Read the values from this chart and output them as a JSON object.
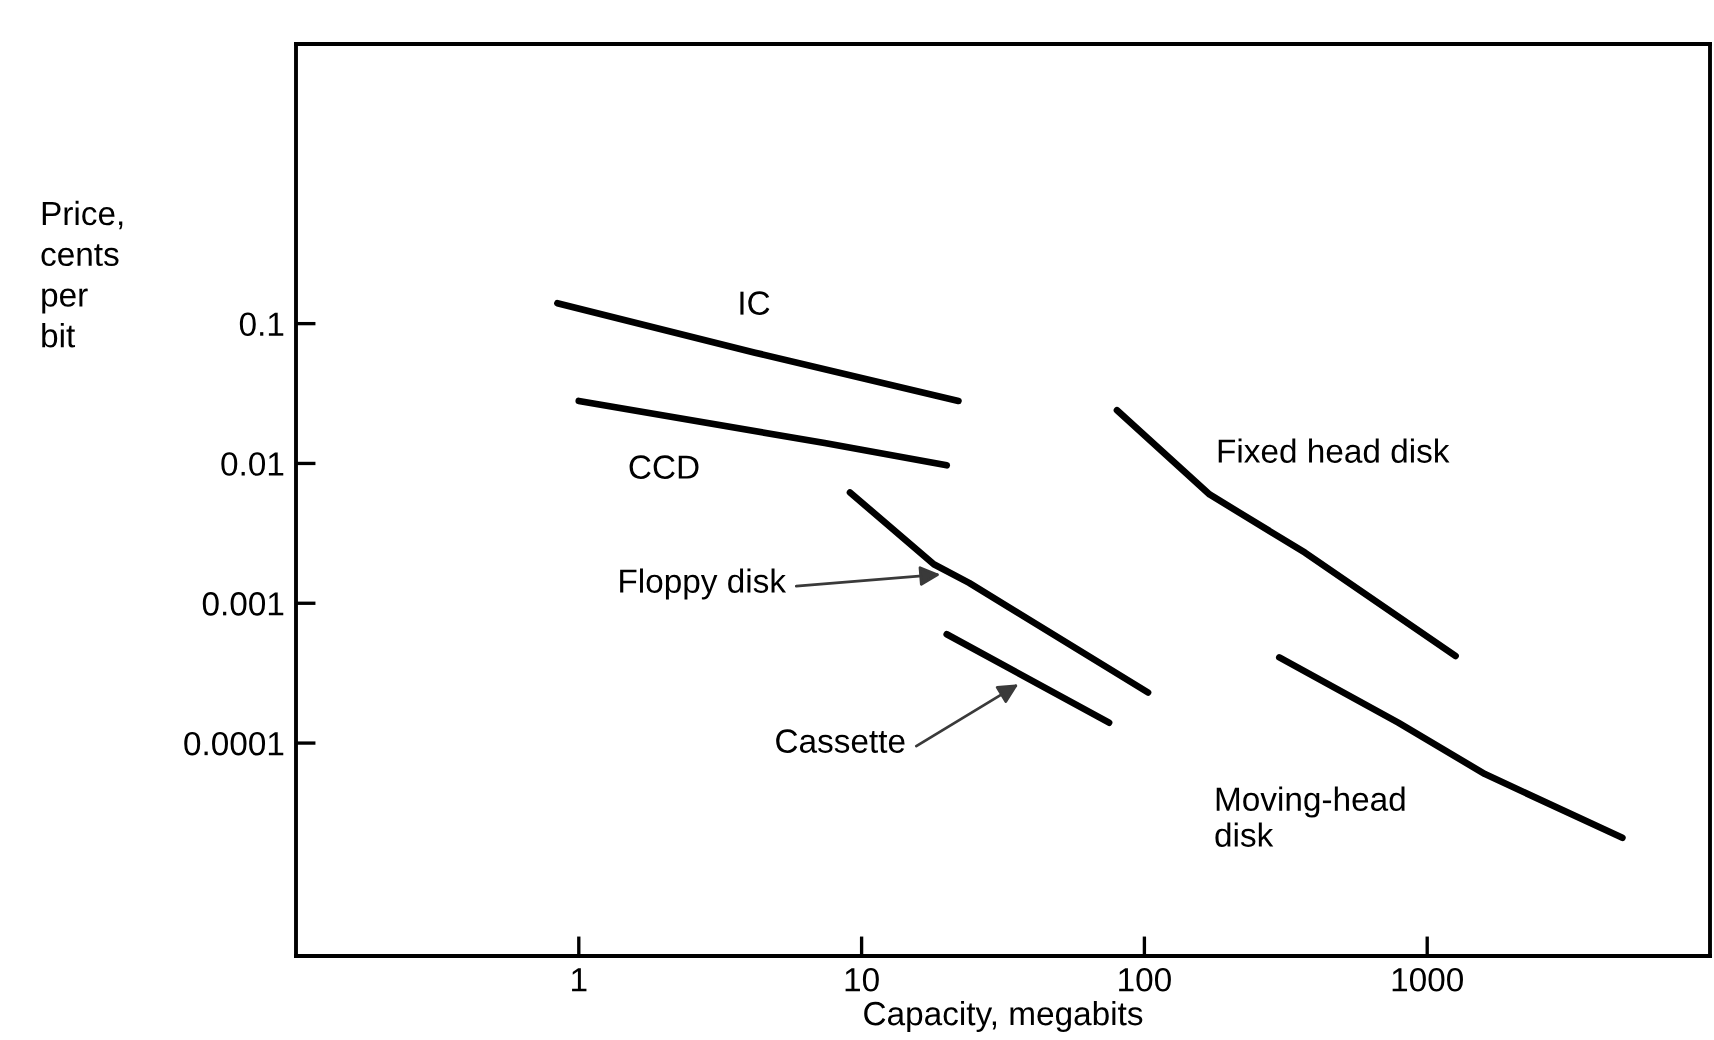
{
  "chart_data": {
    "type": "line",
    "xlabel": "Capacity, megabits",
    "ylabel": "Price,\ncents\nper\nbit",
    "log": "xy",
    "grid": false,
    "legend": false,
    "marker": "none",
    "line_style": "solid",
    "xlim": [
      0.1,
      10000
    ],
    "xticks": [
      1,
      10,
      100,
      1000
    ],
    "ylim": [
      3e-06,
      10
    ],
    "yticks": [
      0.1,
      0.01,
      0.001,
      0.0001
    ],
    "series": [
      {
        "name": "IC",
        "color": "#000000",
        "x": [
          0.84,
          4.2,
          22
        ],
        "values": [
          0.14,
          0.062,
          0.028
        ]
      },
      {
        "name": "CCD",
        "color": "#000000",
        "x": [
          1.0,
          7.4,
          20
        ],
        "values": [
          0.028,
          0.014,
          0.0097
        ]
      },
      {
        "name": "Floppy disk",
        "color": "#000000",
        "x": [
          9.1,
          18,
          24,
          103
        ],
        "values": [
          0.0062,
          0.0019,
          0.0014,
          0.00023
        ]
      },
      {
        "name": "Cassette",
        "color": "#000000",
        "x": [
          20,
          75
        ],
        "values": [
          0.0006,
          0.00014
        ]
      },
      {
        "name": "Fixed head disk",
        "color": "#000000",
        "x": [
          80,
          170,
          370,
          1260
        ],
        "values": [
          0.024,
          0.006,
          0.0023,
          0.00042
        ]
      },
      {
        "name": "Moving-head\ndisk",
        "color": "#000000",
        "x": [
          300,
          790,
          1600,
          4900
        ],
        "values": [
          0.00041,
          0.00014,
          6e-05,
          2.1e-05
        ]
      }
    ]
  }
}
